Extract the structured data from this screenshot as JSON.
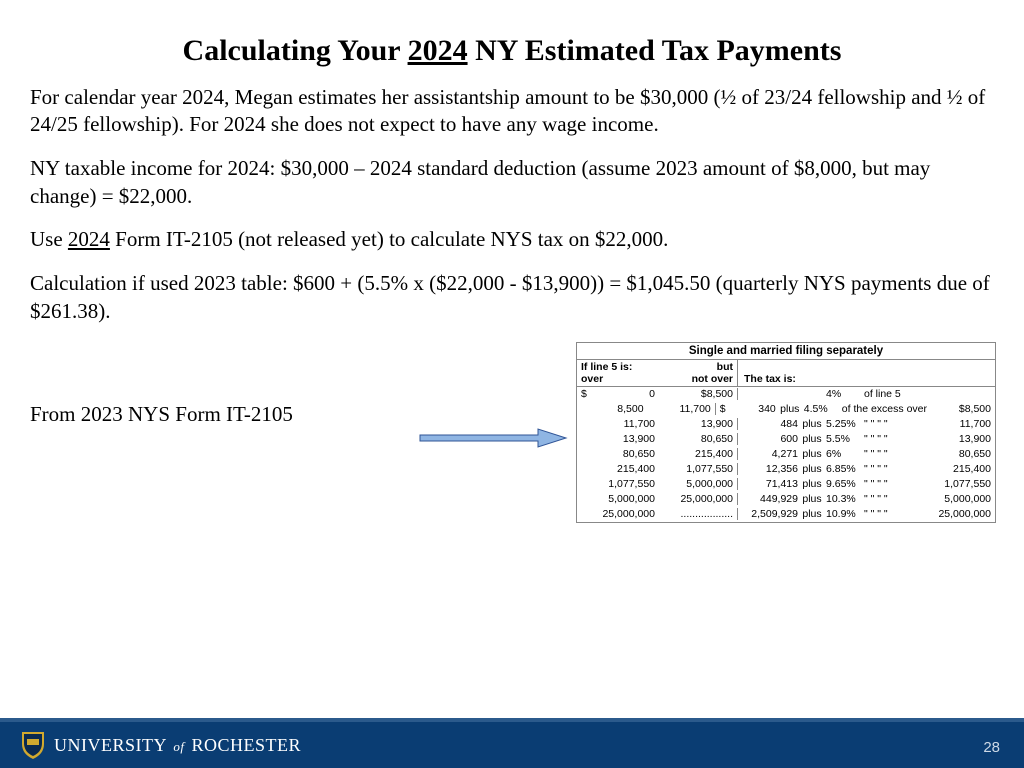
{
  "title_pre": "Calculating Your ",
  "title_year": "2024",
  "title_post": " NY Estimated Tax Payments",
  "para1": "For calendar year 2024, Megan estimates her assistantship amount to be $30,000 (½ of 23/24 fellowship and ½ of 24/25 fellowship).  For 2024 she does not expect to have any wage income.",
  "para2": "NY taxable income for 2024: $30,000 – 2024 standard deduction (assume 2023 amount of $8,000, but may change) = $22,000.",
  "para3_pre": "Use ",
  "para3_u": "2024",
  "para3_post": " Form IT-2105 (not released yet) to calculate NYS tax on $22,000.",
  "para4": "Calculation if used 2023 table: $600 + (5.5% x ($22,000 - $13,900)) = $1,045.50 (quarterly NYS payments due of $261.38).",
  "from_pre": "From ",
  "from_u": "2023",
  "from_post": " NYS Form IT-2105",
  "table": {
    "header": "Single and married filing separately",
    "sub_over_l1": "If line 5 is:",
    "sub_over_l2": "over",
    "sub_notover_l1": "but",
    "sub_notover_l2": "not over",
    "sub_taxis": "The tax is:",
    "row0": {
      "over_prefix": "$",
      "over": "0",
      "notover": "$8,500",
      "pct": "4%",
      "of": "of line 5"
    },
    "rows": [
      {
        "over": "8,500",
        "notover": "11,700",
        "base_prefix": "$",
        "base": "340",
        "plus": "plus",
        "pct": "4.5%",
        "of": "of the excess over",
        "thr": "$8,500"
      },
      {
        "over": "11,700",
        "notover": "13,900",
        "base": "484",
        "plus": "plus",
        "pct": "5.25%",
        "of": "\"   \"   \"   \"",
        "thr": "11,700"
      },
      {
        "over": "13,900",
        "notover": "80,650",
        "base": "600",
        "plus": "plus",
        "pct": "5.5%",
        "of": "\"   \"   \"   \"",
        "thr": "13,900"
      },
      {
        "over": "80,650",
        "notover": "215,400",
        "base": "4,271",
        "plus": "plus",
        "pct": "6%",
        "of": "\"   \"   \"   \"",
        "thr": "80,650"
      },
      {
        "over": "215,400",
        "notover": "1,077,550",
        "base": "12,356",
        "plus": "plus",
        "pct": "6.85%",
        "of": "\"   \"   \"   \"",
        "thr": "215,400"
      },
      {
        "over": "1,077,550",
        "notover": "5,000,000",
        "base": "71,413",
        "plus": "plus",
        "pct": "9.65%",
        "of": "\"   \"   \"   \"",
        "thr": "1,077,550"
      },
      {
        "over": "5,000,000",
        "notover": "25,000,000",
        "base": "449,929",
        "plus": "plus",
        "pct": "10.3%",
        "of": "\"   \"   \"   \"",
        "thr": "5,000,000"
      },
      {
        "over": "25,000,000",
        "notover": "..................",
        "base": "2,509,929",
        "plus": "plus",
        "pct": "10.9%",
        "of": "\"   \"   \"   \"",
        "thr": "25,000,000"
      }
    ]
  },
  "arrow": {
    "fill": "#8fb5e3",
    "stroke": "#2f5496",
    "width": 150,
    "height": 24
  },
  "footer": {
    "uni_pre": "UNIVERSITY",
    "uni_of": "of",
    "uni_post": "ROCHESTER",
    "page": "28",
    "shield_blue": "#0a2a50",
    "shield_gold": "#d1a92f",
    "bar_color": "#0a3d73"
  }
}
